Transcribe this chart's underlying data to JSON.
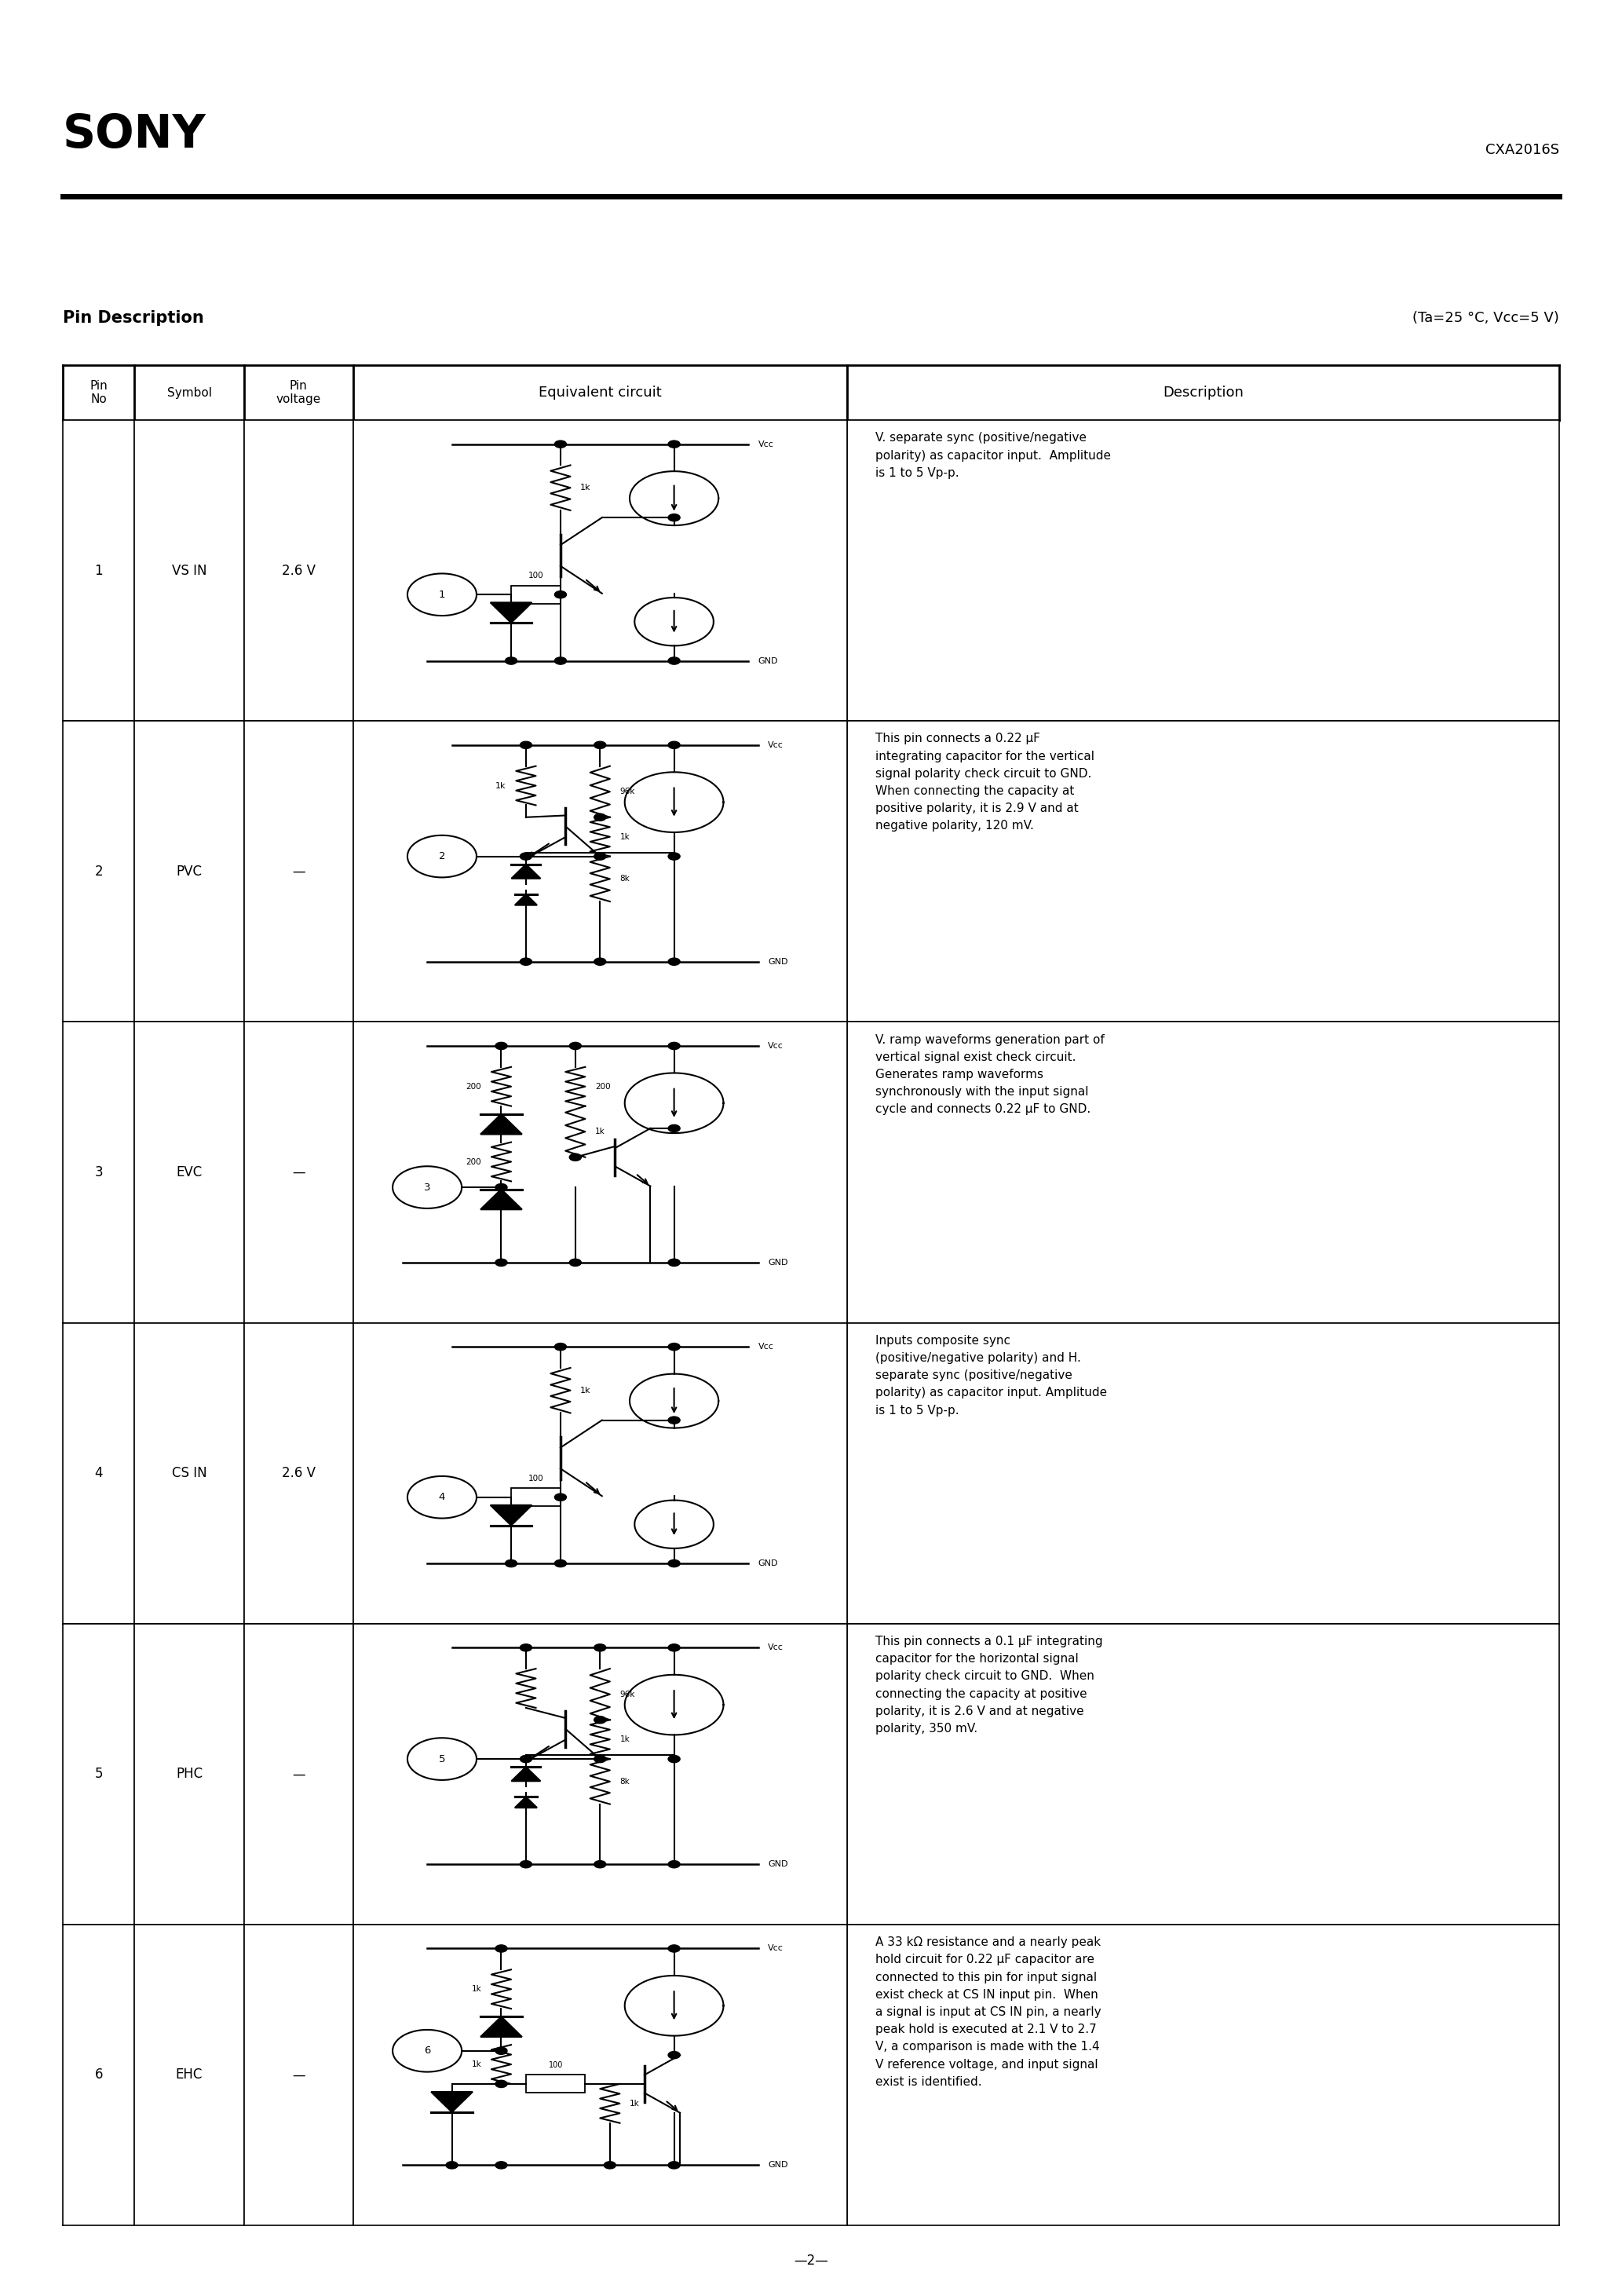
{
  "title": "SONY",
  "part_number": "CXA2016S",
  "section_title": "Pin Description",
  "conditions": "(Ta=25 °C, Vcc=5 V)",
  "page_number": "—2—",
  "table_headers": [
    "Pin\nNo",
    "Symbol",
    "Pin\nvoltage",
    "Equivalent circuit",
    "Description"
  ],
  "pins": [
    {
      "no": "1",
      "symbol": "VS IN",
      "voltage": "2.6 V",
      "description": "V. separate sync (positive/negative\npolarity) as capacitor input.  Amplitude\nis 1 to 5 Vp-p."
    },
    {
      "no": "2",
      "symbol": "PVC",
      "voltage": "—",
      "description": "This pin connects a 0.22 μF\nintegrating capacitor for the vertical\nsignal polarity check circuit to GND.\nWhen connecting the capacity at\npositive polarity, it is 2.9 V and at\nnegative polarity, 120 mV."
    },
    {
      "no": "3",
      "symbol": "EVC",
      "voltage": "—",
      "description": "V. ramp waveforms generation part of\nvertical signal exist check circuit.\nGenerates ramp waveforms\nsynchronously with the input signal\ncycle and connects 0.22 μF to GND."
    },
    {
      "no": "4",
      "symbol": "CS IN",
      "voltage": "2.6 V",
      "description": "Inputs composite sync\n(positive/negative polarity) and H.\nseparate sync (positive/negative\npolarity) as capacitor input. Amplitude\nis 1 to 5 Vp-p."
    },
    {
      "no": "5",
      "symbol": "PHC",
      "voltage": "—",
      "description": "This pin connects a 0.1 μF integrating\ncapacitor for the horizontal signal\npolarity check circuit to GND.  When\nconnecting the capacity at positive\npolarity, it is 2.6 V and at negative\npolarity, 350 mV."
    },
    {
      "no": "6",
      "symbol": "EHC",
      "voltage": "—",
      "description": "A 33 kΩ resistance and a nearly peak\nhold circuit for 0.22 μF capacitor are\nconnected to this pin for input signal\nexist check at CS IN input pin.  When\na signal is input at CS IN pin, a nearly\npeak hold is executed at 2.1 V to 2.7\nV, a comparison is made with the 1.4\nV reference voltage, and input signal\nexist is identified."
    }
  ],
  "background_color": "#ffffff",
  "text_color": "#000000"
}
